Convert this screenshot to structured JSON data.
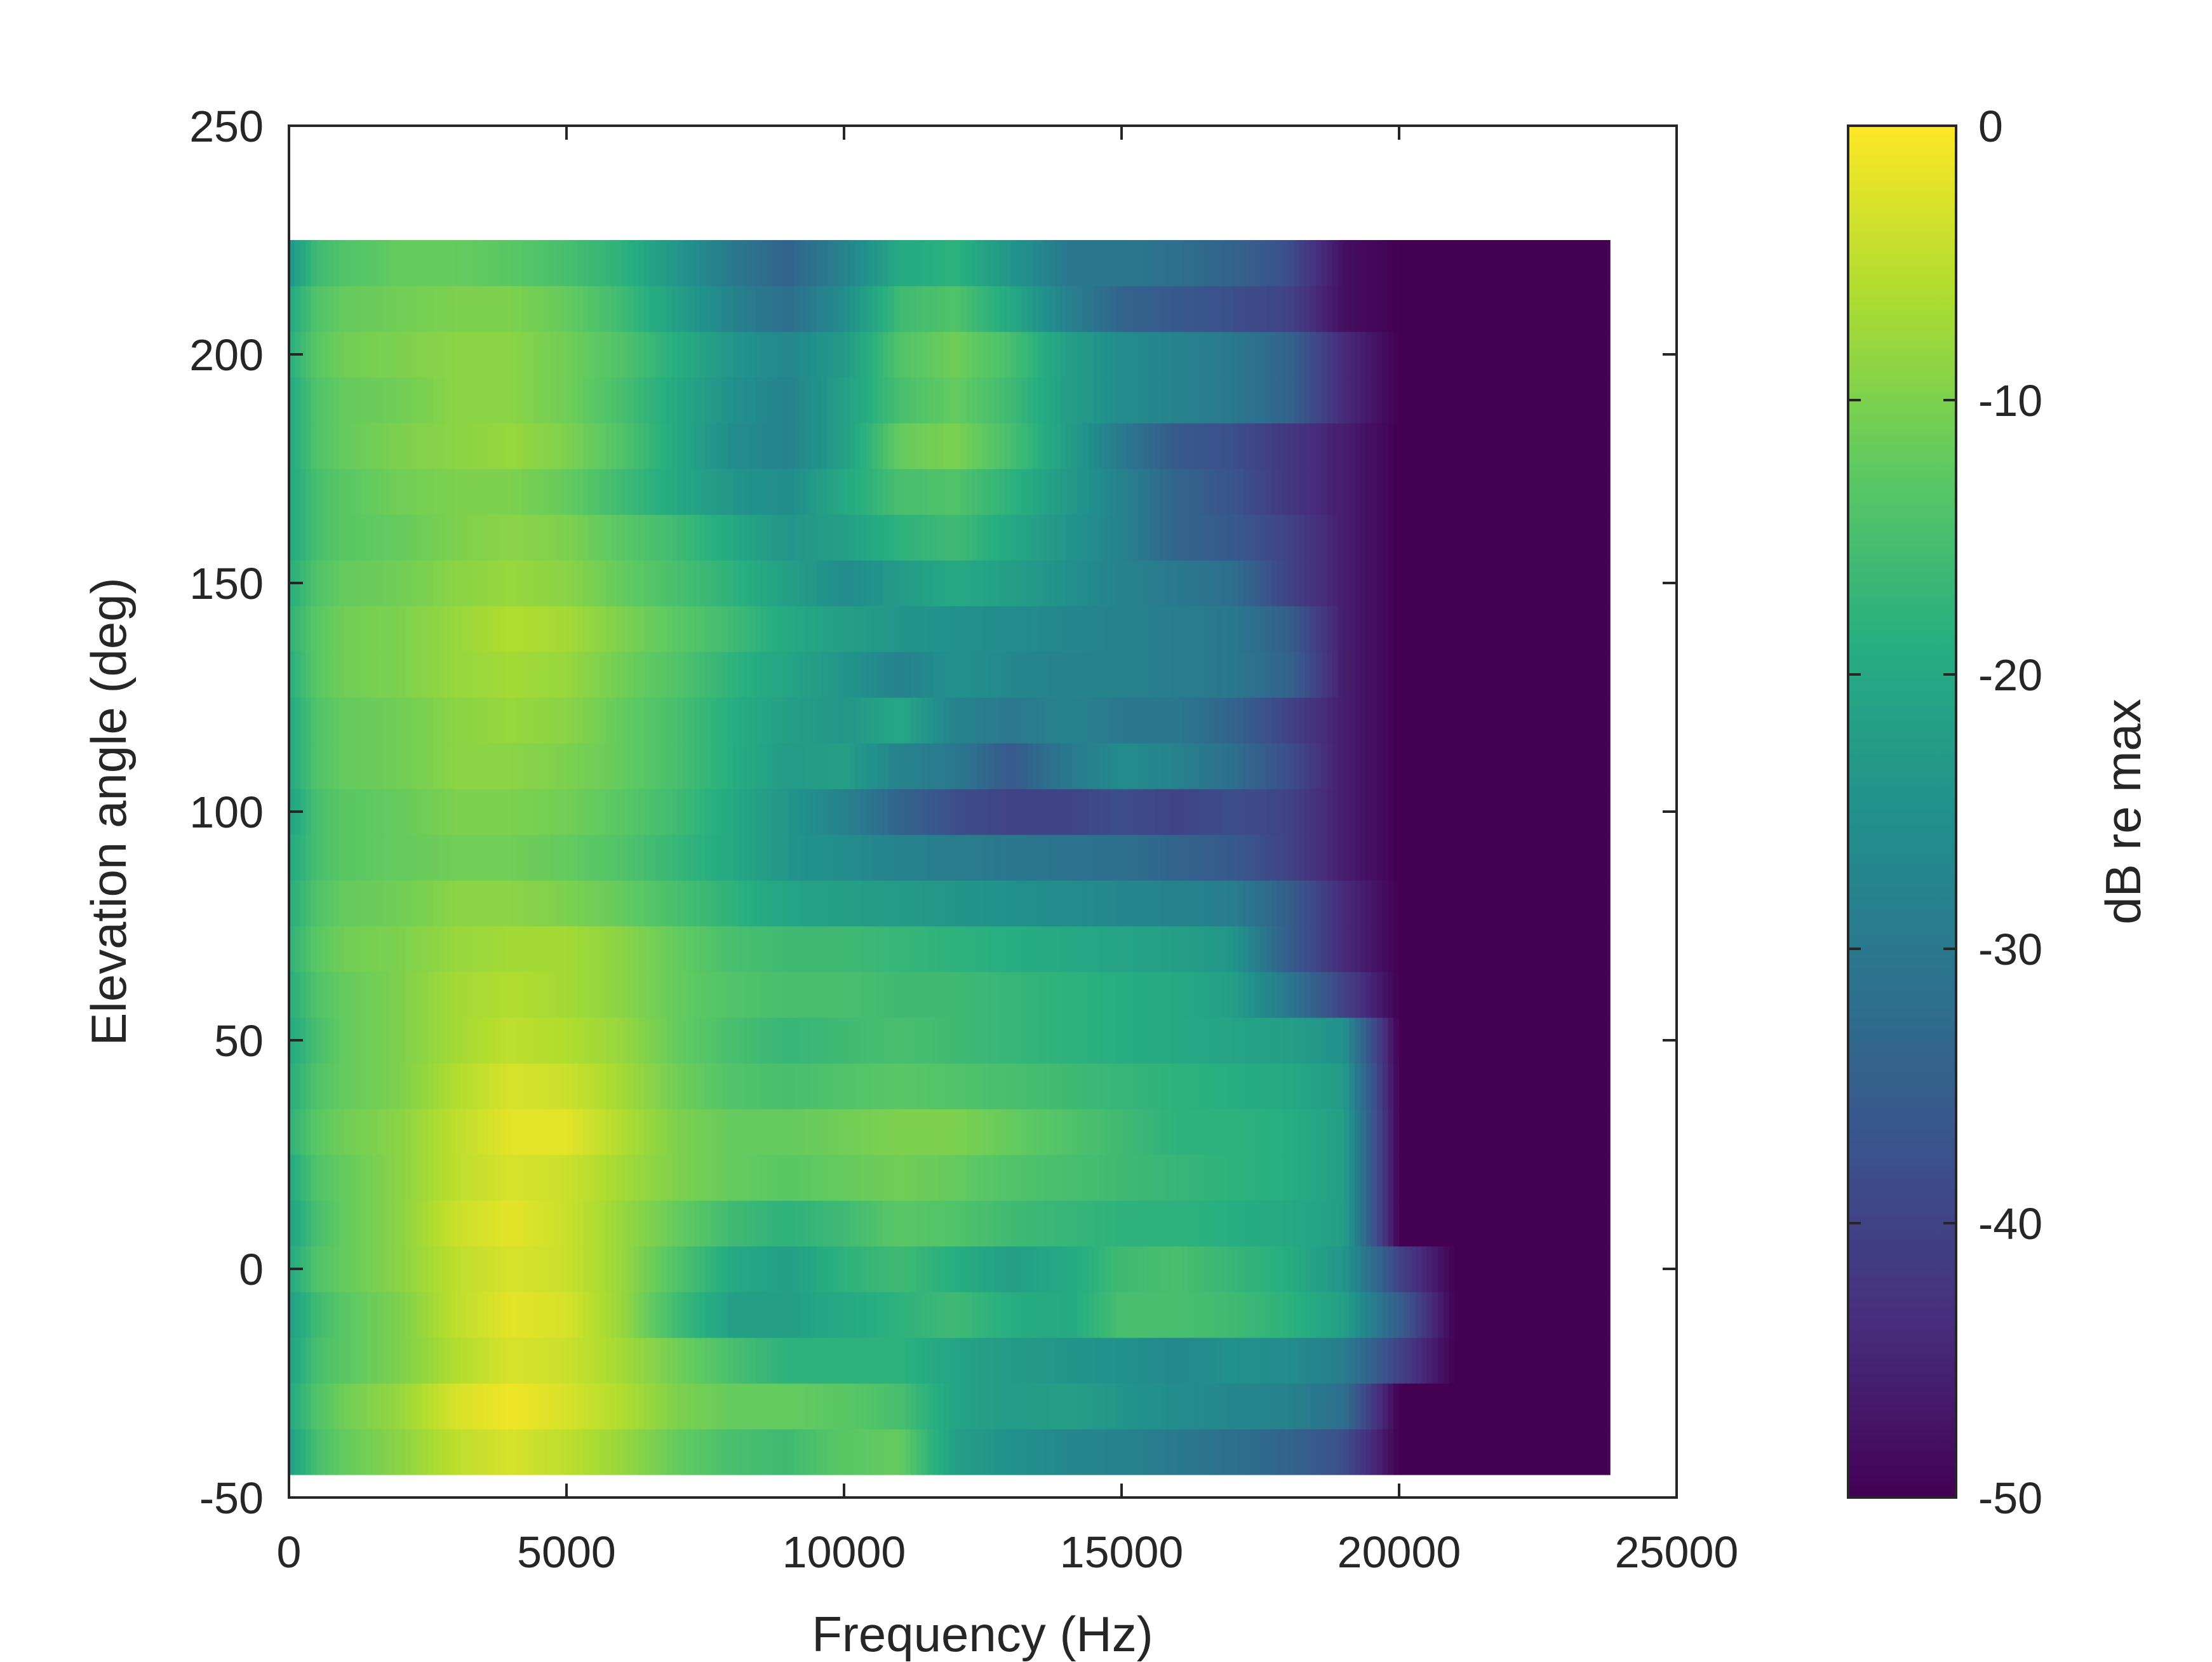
{
  "chart_data": {
    "type": "heatmap",
    "title": "",
    "xlabel": "Frequency (Hz)",
    "ylabel": "Elevation angle (deg)",
    "xlim": [
      0,
      25000
    ],
    "ylim": [
      -50,
      250
    ],
    "x_ticks": [
      0,
      5000,
      10000,
      15000,
      20000,
      25000
    ],
    "y_ticks": [
      -50,
      0,
      50,
      100,
      150,
      200,
      250
    ],
    "x_tick_labels": [
      "0",
      "5000",
      "10000",
      "15000",
      "20000",
      "25000"
    ],
    "y_tick_labels": [
      "-50",
      "0",
      "50",
      "100",
      "150",
      "200",
      "250"
    ],
    "colormap": "viridis",
    "colorbar": {
      "label": "dB re max",
      "range": [
        -50,
        0
      ],
      "ticks": [
        0,
        -10,
        -20,
        -30,
        -40,
        -50
      ],
      "tick_labels": [
        "0",
        "-10",
        "-20",
        "-30",
        "-40",
        "-50"
      ]
    },
    "data_extent": {
      "freq_hz": [
        0,
        23800
      ],
      "elevation_deg": [
        -45,
        225
      ]
    },
    "elevations_deg": [
      -45,
      -35,
      -25,
      -15,
      -5,
      5,
      15,
      25,
      35,
      45,
      55,
      65,
      75,
      85,
      95,
      105,
      115,
      125,
      135,
      145,
      155,
      165,
      175,
      185,
      195,
      205,
      215,
      225
    ],
    "frequency_nodes_hz": [
      0,
      500,
      1000,
      2000,
      3000,
      4000,
      5000,
      6000,
      7000,
      8000,
      9000,
      10000,
      11000,
      12000,
      13000,
      14000,
      15000,
      16000,
      17000,
      18000,
      19000,
      20000,
      21000,
      23800
    ],
    "magnitude_db": [
      [
        -22,
        -15,
        -12,
        -9,
        -5,
        -3,
        -5,
        -8,
        -12,
        -15,
        -16,
        -13,
        -12,
        -22,
        -25,
        -27,
        -28,
        -30,
        -32,
        -34,
        -38,
        -50,
        -50,
        -50
      ],
      [
        -20,
        -14,
        -11,
        -8,
        -3,
        -1,
        -3,
        -6,
        -10,
        -12,
        -12,
        -13,
        -15,
        -21,
        -23,
        -22,
        -24,
        -26,
        -27,
        -28,
        -32,
        -50,
        -50,
        -50
      ],
      [
        -21,
        -15,
        -13,
        -10,
        -6,
        -3,
        -4,
        -7,
        -11,
        -15,
        -18,
        -18,
        -18,
        -21,
        -23,
        -24,
        -25,
        -27,
        -25,
        -26,
        -29,
        -40,
        -50,
        -50
      ],
      [
        -22,
        -16,
        -13,
        -10,
        -5,
        -2,
        -3,
        -8,
        -16,
        -22,
        -22,
        -20,
        -18,
        -16,
        -19,
        -20,
        -15,
        -15,
        -16,
        -18,
        -22,
        -35,
        -50,
        -50
      ],
      [
        -20,
        -14,
        -12,
        -9,
        -5,
        -3,
        -4,
        -8,
        -14,
        -20,
        -22,
        -18,
        -16,
        -19,
        -22,
        -20,
        -16,
        -15,
        -17,
        -19,
        -24,
        -40,
        -50,
        -50
      ],
      [
        -21,
        -15,
        -12,
        -9,
        -4,
        -2,
        -4,
        -8,
        -12,
        -16,
        -18,
        -16,
        -13,
        -14,
        -16,
        -17,
        -18,
        -18,
        -19,
        -20,
        -22,
        -50,
        -50,
        -50
      ],
      [
        -20,
        -14,
        -12,
        -9,
        -5,
        -3,
        -4,
        -7,
        -10,
        -12,
        -13,
        -12,
        -11,
        -12,
        -14,
        -15,
        -16,
        -17,
        -18,
        -19,
        -22,
        -50,
        -50,
        -50
      ],
      [
        -18,
        -13,
        -11,
        -9,
        -5,
        -2,
        -2,
        -6,
        -10,
        -12,
        -12,
        -11,
        -10,
        -10,
        -12,
        -14,
        -16,
        -18,
        -18,
        -19,
        -22,
        -50,
        -50,
        -50
      ],
      [
        -19,
        -14,
        -12,
        -10,
        -6,
        -3,
        -4,
        -7,
        -11,
        -14,
        -15,
        -14,
        -13,
        -14,
        -15,
        -16,
        -17,
        -18,
        -19,
        -20,
        -23,
        -50,
        -50,
        -50
      ],
      [
        -20,
        -15,
        -12,
        -10,
        -7,
        -5,
        -6,
        -8,
        -12,
        -15,
        -17,
        -16,
        -15,
        -16,
        -17,
        -18,
        -19,
        -20,
        -21,
        -22,
        -25,
        -50,
        -50,
        -50
      ],
      [
        -19,
        -14,
        -12,
        -10,
        -7,
        -6,
        -7,
        -9,
        -12,
        -14,
        -15,
        -15,
        -16,
        -16,
        -17,
        -18,
        -19,
        -20,
        -22,
        -30,
        -40,
        -50,
        -50,
        -50
      ],
      [
        -18,
        -13,
        -11,
        -10,
        -8,
        -7,
        -7,
        -9,
        -12,
        -15,
        -16,
        -16,
        -17,
        -18,
        -19,
        -20,
        -21,
        -22,
        -24,
        -35,
        -44,
        -50,
        -50,
        -50
      ],
      [
        -19,
        -14,
        -12,
        -11,
        -9,
        -9,
        -10,
        -12,
        -15,
        -18,
        -21,
        -22,
        -23,
        -24,
        -25,
        -26,
        -27,
        -28,
        -29,
        -35,
        -44,
        -50,
        -50,
        -50
      ],
      [
        -20,
        -15,
        -13,
        -12,
        -11,
        -11,
        -12,
        -14,
        -17,
        -20,
        -24,
        -26,
        -28,
        -29,
        -30,
        -31,
        -32,
        -34,
        -36,
        -40,
        -46,
        -50,
        -50,
        -50
      ],
      [
        -21,
        -15,
        -13,
        -12,
        -10,
        -10,
        -11,
        -13,
        -16,
        -20,
        -24,
        -28,
        -34,
        -38,
        -40,
        -40,
        -38,
        -40,
        -38,
        -40,
        -46,
        -50,
        -50,
        -50
      ],
      [
        -20,
        -14,
        -12,
        -11,
        -9,
        -9,
        -10,
        -12,
        -15,
        -19,
        -23,
        -22,
        -28,
        -30,
        -36,
        -30,
        -26,
        -28,
        -32,
        -38,
        -46,
        -50,
        -50,
        -50
      ],
      [
        -20,
        -14,
        -12,
        -11,
        -9,
        -8,
        -9,
        -12,
        -15,
        -19,
        -22,
        -24,
        -20,
        -28,
        -30,
        -28,
        -30,
        -30,
        -34,
        -40,
        -46,
        -50,
        -50,
        -50
      ],
      [
        -19,
        -13,
        -11,
        -10,
        -8,
        -7,
        -8,
        -11,
        -14,
        -18,
        -21,
        -24,
        -28,
        -25,
        -27,
        -28,
        -28,
        -29,
        -30,
        -34,
        -46,
        -50,
        -50,
        -50
      ],
      [
        -18,
        -13,
        -11,
        -10,
        -8,
        -6,
        -7,
        -10,
        -13,
        -16,
        -20,
        -22,
        -24,
        -25,
        -26,
        -27,
        -28,
        -29,
        -30,
        -35,
        -46,
        -50,
        -50,
        -50
      ],
      [
        -19,
        -14,
        -12,
        -11,
        -9,
        -8,
        -9,
        -12,
        -15,
        -18,
        -22,
        -26,
        -23,
        -20,
        -22,
        -25,
        -28,
        -30,
        -32,
        -40,
        -46,
        -50,
        -50,
        -50
      ],
      [
        -20,
        -15,
        -13,
        -12,
        -10,
        -9,
        -10,
        -13,
        -16,
        -20,
        -24,
        -22,
        -18,
        -16,
        -20,
        -24,
        -28,
        -34,
        -36,
        -40,
        -46,
        -50,
        -50,
        -50
      ],
      [
        -20,
        -15,
        -13,
        -11,
        -10,
        -10,
        -12,
        -16,
        -20,
        -24,
        -26,
        -20,
        -15,
        -14,
        -18,
        -23,
        -28,
        -34,
        -37,
        -42,
        -46,
        -50,
        -50,
        -50
      ],
      [
        -20,
        -14,
        -12,
        -10,
        -9,
        -8,
        -10,
        -14,
        -20,
        -26,
        -28,
        -22,
        -12,
        -10,
        -15,
        -22,
        -30,
        -36,
        -38,
        -42,
        -46,
        -50,
        -50,
        -50
      ],
      [
        -20,
        -14,
        -12,
        -11,
        -9,
        -9,
        -11,
        -15,
        -20,
        -25,
        -28,
        -22,
        -15,
        -12,
        -16,
        -22,
        -26,
        -28,
        -30,
        -34,
        -44,
        -50,
        -50,
        -50
      ],
      [
        -19,
        -13,
        -11,
        -10,
        -9,
        -9,
        -11,
        -14,
        -19,
        -24,
        -27,
        -23,
        -14,
        -11,
        -15,
        -22,
        -26,
        -28,
        -30,
        -34,
        -44,
        -50,
        -50,
        -50
      ],
      [
        -20,
        -14,
        -12,
        -11,
        -10,
        -10,
        -12,
        -16,
        -22,
        -28,
        -32,
        -26,
        -16,
        -14,
        -20,
        -28,
        -34,
        -36,
        -38,
        -40,
        -48,
        -50,
        -50,
        -50
      ],
      [
        -24,
        -16,
        -14,
        -12,
        -12,
        -13,
        -15,
        -18,
        -24,
        -30,
        -34,
        -28,
        -20,
        -18,
        -24,
        -30,
        -30,
        -32,
        -34,
        -38,
        -48,
        -50,
        -50,
        -50
      ],
      [
        -24,
        -16,
        -14,
        -12,
        -12,
        -13,
        -15,
        -18,
        -24,
        -30,
        -34,
        -28,
        -20,
        -18,
        -24,
        -30,
        -30,
        -32,
        -34,
        -38,
        -48,
        -50,
        -50,
        -50
      ]
    ]
  }
}
